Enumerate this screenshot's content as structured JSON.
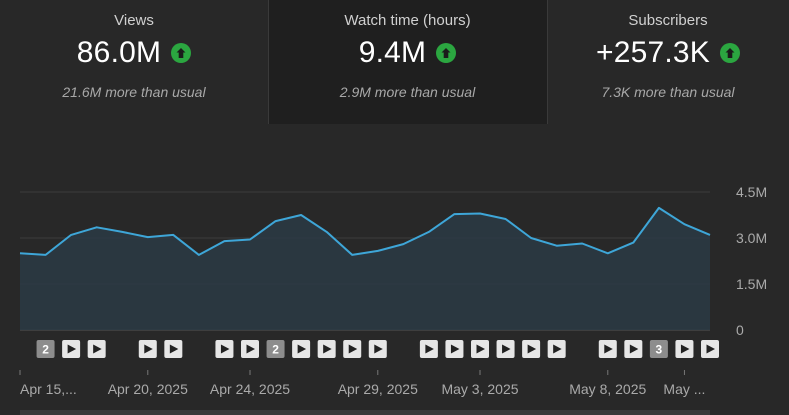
{
  "metrics": [
    {
      "label": "Views",
      "value": "86.0M",
      "sub": "21.6M more than usual",
      "trend": "up"
    },
    {
      "label": "Watch time (hours)",
      "value": "9.4M",
      "sub": "2.9M more than usual",
      "trend": "up"
    },
    {
      "label": "Subscribers",
      "value": "+257.3K",
      "sub": "7.3K more than usual",
      "trend": "up"
    }
  ],
  "colors": {
    "line": "#3ea6d8",
    "up_arrow": "#2ba640"
  },
  "chart_data": {
    "type": "area",
    "ylim": [
      0,
      4500000
    ],
    "y_ticks": [
      {
        "value": 4500000,
        "label": "4.5M"
      },
      {
        "value": 3000000,
        "label": "3.0M"
      },
      {
        "value": 1500000,
        "label": "1.5M"
      },
      {
        "value": 0,
        "label": "0"
      }
    ],
    "values": [
      2.5,
      2.45,
      3.1,
      3.35,
      3.2,
      3.03,
      3.1,
      2.45,
      2.9,
      2.95,
      3.55,
      3.75,
      3.2,
      2.45,
      2.58,
      2.8,
      3.2,
      3.78,
      3.8,
      3.62,
      3.0,
      2.75,
      2.82,
      2.5,
      2.85,
      3.98,
      3.45,
      3.1
    ],
    "values_unit": "M",
    "x_labels": [
      {
        "index": 0,
        "label": "Apr 15,..."
      },
      {
        "index": 5,
        "label": "Apr 20, 2025"
      },
      {
        "index": 9,
        "label": "Apr 24, 2025"
      },
      {
        "index": 14,
        "label": "Apr 29, 2025"
      },
      {
        "index": 18,
        "label": "May 3, 2025"
      },
      {
        "index": 23,
        "label": "May 8, 2025"
      },
      {
        "index": 26,
        "label": "May ..."
      }
    ],
    "markers": [
      {
        "index": 1,
        "type": "count",
        "label": "2"
      },
      {
        "index": 2,
        "type": "play"
      },
      {
        "index": 3,
        "type": "play"
      },
      {
        "index": 5,
        "type": "play"
      },
      {
        "index": 6,
        "type": "play"
      },
      {
        "index": 8,
        "type": "play"
      },
      {
        "index": 9,
        "type": "play"
      },
      {
        "index": 10,
        "type": "count",
        "label": "2"
      },
      {
        "index": 11,
        "type": "play"
      },
      {
        "index": 12,
        "type": "play"
      },
      {
        "index": 13,
        "type": "play"
      },
      {
        "index": 14,
        "type": "play"
      },
      {
        "index": 16,
        "type": "play"
      },
      {
        "index": 17,
        "type": "play"
      },
      {
        "index": 18,
        "type": "play"
      },
      {
        "index": 19,
        "type": "play"
      },
      {
        "index": 20,
        "type": "play"
      },
      {
        "index": 21,
        "type": "play"
      },
      {
        "index": 23,
        "type": "play"
      },
      {
        "index": 24,
        "type": "play"
      },
      {
        "index": 25,
        "type": "count",
        "label": "3"
      },
      {
        "index": 26,
        "type": "play"
      },
      {
        "index": 27,
        "type": "play"
      }
    ]
  }
}
